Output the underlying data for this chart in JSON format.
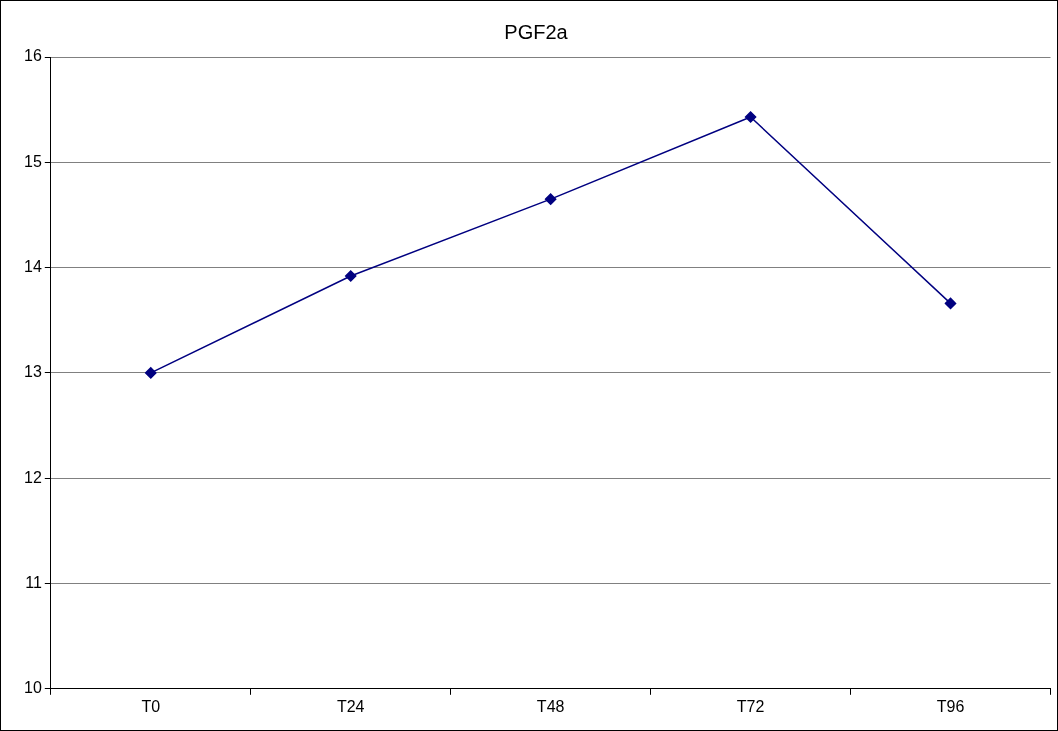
{
  "chart_data": {
    "type": "line",
    "title": "PGF2a",
    "categories": [
      "T0",
      "T24",
      "T48",
      "T72",
      "T96"
    ],
    "series": [
      {
        "color": "#000080",
        "values": [
          13.0,
          13.92,
          14.65,
          15.43,
          13.66
        ]
      }
    ],
    "ylim": [
      10,
      16
    ],
    "yticks": [
      10,
      11,
      12,
      13,
      14,
      15,
      16
    ],
    "grid": "y",
    "legend": false,
    "marker": "diamond",
    "line_style": "solid"
  }
}
